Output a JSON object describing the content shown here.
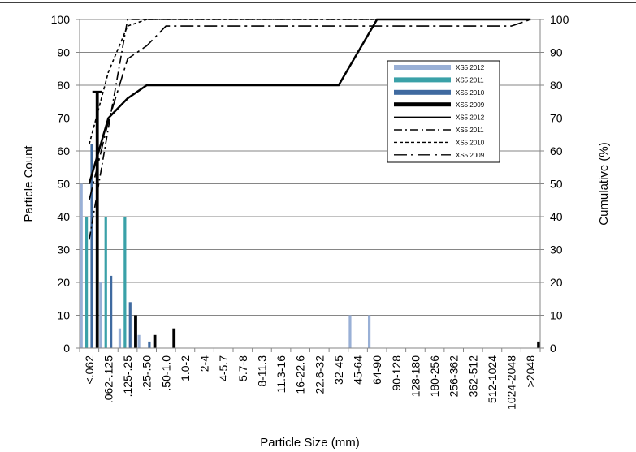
{
  "chart_data": {
    "type": "bar",
    "xlabel": "Particle Size (mm)",
    "ylabel": "Particle Count",
    "y2label": "Cumulative (%)",
    "ylim": [
      0,
      100
    ],
    "y2lim": [
      0,
      100
    ],
    "yticks": [
      0,
      10,
      20,
      30,
      40,
      50,
      60,
      70,
      80,
      90,
      100
    ],
    "grid": true,
    "legend_position": "top-right",
    "categories": [
      "<.062",
      ".062-.125",
      ".125-.25",
      ".25-.50",
      ".50-1.0",
      "1.0-2",
      "2-4",
      "4-5.7",
      "5.7-8",
      "8-11.3",
      "11.3-16",
      "16-22.6",
      "22.6-32",
      "32-45",
      "45-64",
      "64-90",
      "90-128",
      "128-180",
      "180-256",
      "256-362",
      "362-512",
      "512-1024",
      "1024-2048",
      ">2048"
    ],
    "bar_series": [
      {
        "name": "XS5 2012",
        "color": "#99b0d6",
        "values": [
          50,
          20,
          6,
          4,
          0,
          0,
          0,
          0,
          0,
          0,
          0,
          0,
          0,
          0,
          10,
          10,
          0,
          0,
          0,
          0,
          0,
          0,
          0,
          0
        ]
      },
      {
        "name": "XS5 2011",
        "color": "#3aa1a8",
        "values": [
          40,
          40,
          40,
          0,
          0,
          0,
          0,
          0,
          0,
          0,
          0,
          0,
          0,
          0,
          0,
          0,
          0,
          0,
          0,
          0,
          0,
          0,
          0,
          0
        ]
      },
      {
        "name": "XS5 2010",
        "color": "#3f6aa0",
        "values": [
          62,
          22,
          14,
          2,
          0,
          0,
          0,
          0,
          0,
          0,
          0,
          0,
          0,
          0,
          0,
          0,
          0,
          0,
          0,
          0,
          0,
          0,
          0,
          0
        ]
      },
      {
        "name": "XS5 2009",
        "color": "#000000",
        "values": [
          78,
          0,
          10,
          4,
          6,
          0,
          0,
          0,
          0,
          0,
          0,
          0,
          0,
          0,
          0,
          0,
          0,
          0,
          0,
          0,
          0,
          0,
          0,
          2
        ]
      }
    ],
    "line_series": [
      {
        "name": "XS5 2012",
        "dash": "solid",
        "values": [
          50,
          70,
          76,
          80,
          80,
          80,
          80,
          80,
          80,
          80,
          80,
          80,
          80,
          80,
          90,
          100,
          100,
          100,
          100,
          100,
          100,
          100,
          100,
          100
        ]
      },
      {
        "name": "XS5 2011",
        "dash": "dashdot",
        "values": [
          33,
          67,
          100,
          100,
          100,
          100,
          100,
          100,
          100,
          100,
          100,
          100,
          100,
          100,
          100,
          100,
          100,
          100,
          100,
          100,
          100,
          100,
          100,
          100
        ]
      },
      {
        "name": "XS5 2010",
        "dash": "dashed",
        "values": [
          62,
          84,
          98,
          100,
          100,
          100,
          100,
          100,
          100,
          100,
          100,
          100,
          100,
          100,
          100,
          100,
          100,
          100,
          100,
          100,
          100,
          100,
          100,
          100
        ]
      },
      {
        "name": "XS5 2009",
        "dash": "longdashdot",
        "values": [
          45,
          69,
          88,
          92,
          98,
          98,
          98,
          98,
          98,
          98,
          98,
          98,
          98,
          98,
          98,
          98,
          98,
          98,
          98,
          98,
          98,
          98,
          98,
          100
        ]
      }
    ],
    "error_bar": {
      "category": "<.062",
      "series": "XS5 2009",
      "value": 78
    }
  }
}
